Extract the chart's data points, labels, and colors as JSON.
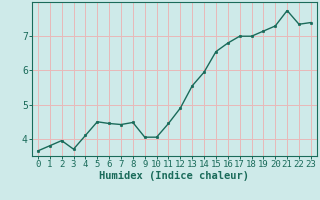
{
  "x": [
    0,
    1,
    2,
    3,
    4,
    5,
    6,
    7,
    8,
    9,
    10,
    11,
    12,
    13,
    14,
    15,
    16,
    17,
    18,
    19,
    20,
    21,
    22,
    23
  ],
  "y": [
    3.65,
    3.8,
    3.95,
    3.7,
    4.1,
    4.5,
    4.45,
    4.42,
    4.48,
    4.05,
    4.05,
    4.45,
    4.9,
    5.55,
    5.95,
    6.55,
    6.8,
    7.0,
    7.0,
    7.15,
    7.3,
    7.75,
    7.35,
    7.4
  ],
  "line_color": "#1a6b5a",
  "marker_color": "#1a6b5a",
  "bg_color": "#ceeae9",
  "grid_color": "#e8b8b8",
  "axis_color": "#1a6b5a",
  "xlabel": "Humidex (Indice chaleur)",
  "xlim": [
    -0.5,
    23.5
  ],
  "ylim": [
    3.5,
    8.0
  ],
  "yticks": [
    4,
    5,
    6,
    7
  ],
  "xticks": [
    0,
    1,
    2,
    3,
    4,
    5,
    6,
    7,
    8,
    9,
    10,
    11,
    12,
    13,
    14,
    15,
    16,
    17,
    18,
    19,
    20,
    21,
    22,
    23
  ],
  "tick_fontsize": 6.5,
  "xlabel_fontsize": 7.5
}
